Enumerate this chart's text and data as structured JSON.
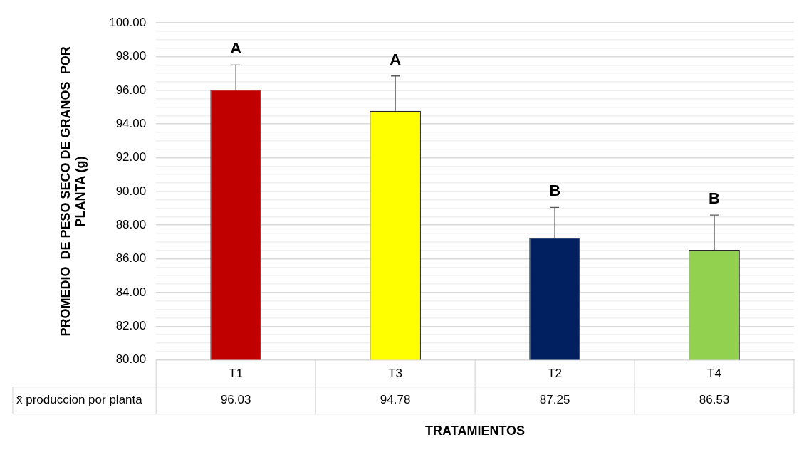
{
  "chart_data": {
    "type": "bar",
    "ylabel": "PROMEDIO  DE PESO SECO DE GRANOS  POR PLANTA (g)",
    "xlabel": "TRATAMIENTOS",
    "categories": [
      "T1",
      "T3",
      "T2",
      "T4"
    ],
    "series": [
      {
        "name": "x̄ produccion por planta",
        "values": [
          96.03,
          94.78,
          87.25,
          86.53
        ],
        "colors": [
          "#c00000",
          "#ffff00",
          "#002060",
          "#92d050"
        ],
        "errors": [
          [
            96.03,
            97.5
          ],
          [
            94.78,
            96.85
          ],
          [
            87.25,
            89.05
          ],
          [
            86.53,
            88.6
          ]
        ]
      }
    ],
    "ylim": [
      80,
      100
    ],
    "yticks": [
      {
        "value": 80,
        "label": "80.00"
      },
      {
        "value": 80.5,
        "label": null
      },
      {
        "value": 81,
        "label": null
      },
      {
        "value": 81.5,
        "label": null
      },
      {
        "value": 82,
        "label": "82.00"
      },
      {
        "value": 82.5,
        "label": null
      },
      {
        "value": 83,
        "label": null
      },
      {
        "value": 83.5,
        "label": null
      },
      {
        "value": 84,
        "label": "84.00"
      },
      {
        "value": 84.5,
        "label": null
      },
      {
        "value": 85,
        "label": null
      },
      {
        "value": 85.5,
        "label": null
      },
      {
        "value": 86,
        "label": "86.00"
      },
      {
        "value": 86.5,
        "label": null
      },
      {
        "value": 87,
        "label": null
      },
      {
        "value": 87.5,
        "label": null
      },
      {
        "value": 88,
        "label": "88.00"
      },
      {
        "value": 88.5,
        "label": null
      },
      {
        "value": 89,
        "label": null
      },
      {
        "value": 89.5,
        "label": null
      },
      {
        "value": 90,
        "label": "90.00"
      },
      {
        "value": 90.5,
        "label": null
      },
      {
        "value": 91,
        "label": null
      },
      {
        "value": 91.5,
        "label": null
      },
      {
        "value": 92,
        "label": "92.00"
      },
      {
        "value": 92.5,
        "label": null
      },
      {
        "value": 93,
        "label": null
      },
      {
        "value": 93.5,
        "label": null
      },
      {
        "value": 94,
        "label": "94.00"
      },
      {
        "value": 94.5,
        "label": null
      },
      {
        "value": 95,
        "label": null
      },
      {
        "value": 95.5,
        "label": null
      },
      {
        "value": 96,
        "label": "96.00"
      },
      {
        "value": 96.5,
        "label": null
      },
      {
        "value": 97,
        "label": null
      },
      {
        "value": 97.5,
        "label": null
      },
      {
        "value": 98,
        "label": "98.00"
      },
      {
        "value": 98.5,
        "label": null
      },
      {
        "value": 99,
        "label": null
      },
      {
        "value": 99.5,
        "label": null
      },
      {
        "value": 100,
        "label": "100.00"
      }
    ],
    "grid": "y",
    "legend": false,
    "data_labels": true,
    "annotations": [
      "A",
      "A",
      "B",
      "B"
    ]
  }
}
